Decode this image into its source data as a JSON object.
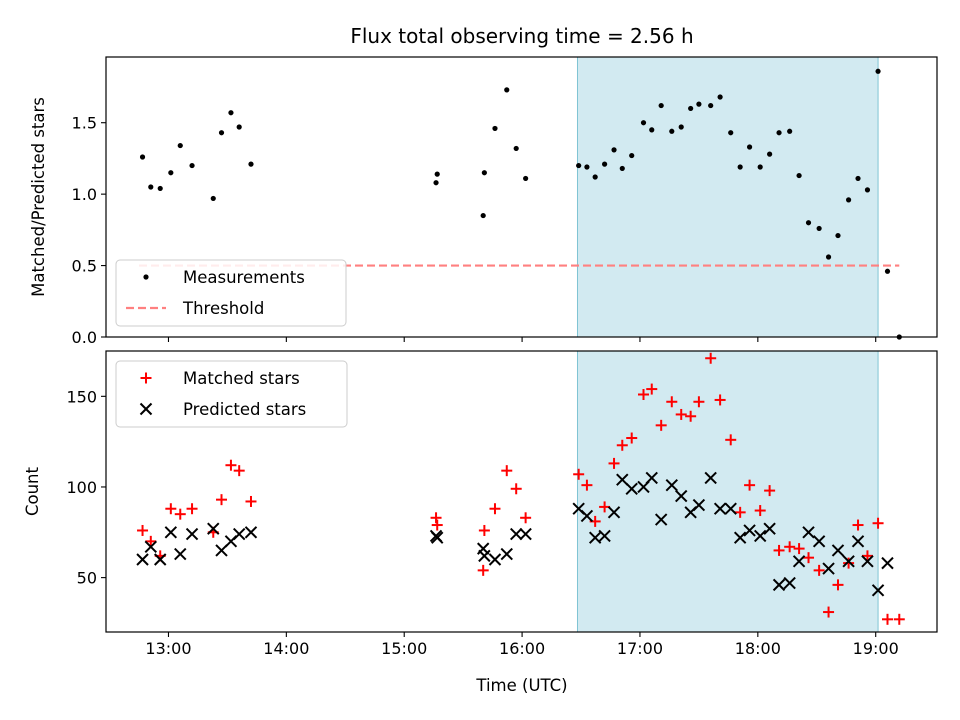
{
  "figure": {
    "title": "Flux total observing time = 2.56 h",
    "xlabel": "Time (UTC)",
    "x_ticks": [
      {
        "v": 13.0,
        "label": "13:00"
      },
      {
        "v": 14.0,
        "label": "14:00"
      },
      {
        "v": 15.0,
        "label": "15:00"
      },
      {
        "v": 16.0,
        "label": "16:00"
      },
      {
        "v": 17.0,
        "label": "17:00"
      },
      {
        "v": 18.0,
        "label": "18:00"
      },
      {
        "v": 19.0,
        "label": "19:00"
      }
    ],
    "xlim": [
      12.47,
      19.52
    ],
    "shaded_span": {
      "from": 16.47,
      "to": 19.02,
      "color": "#add8e6"
    }
  },
  "chart_data": [
    {
      "type": "scatter",
      "ylabel": "Matched/Predicted stars",
      "ylim": [
        0,
        1.96
      ],
      "y_ticks": [
        {
          "v": 0.0,
          "label": "0.0"
        },
        {
          "v": 0.5,
          "label": "0.5"
        },
        {
          "v": 1.0,
          "label": "1.0"
        },
        {
          "v": 1.5,
          "label": "1.5"
        }
      ],
      "legend": {
        "position": "lower-left",
        "entries": [
          "Measurements",
          "Threshold"
        ]
      },
      "threshold": {
        "name": "Threshold",
        "value": 0.5,
        "x_range": [
          12.75,
          19.2
        ],
        "color": "#ff8080"
      },
      "series": [
        {
          "name": "Measurements",
          "color": "#000000",
          "marker": "dot",
          "x": [
            12.78,
            12.85,
            12.93,
            13.02,
            13.1,
            13.2,
            13.38,
            13.45,
            13.53,
            13.6,
            13.7,
            15.27,
            15.28,
            15.67,
            15.68,
            15.77,
            15.87,
            15.95,
            16.03,
            16.48,
            16.55,
            16.62,
            16.7,
            16.78,
            16.85,
            16.93,
            17.03,
            17.1,
            17.18,
            17.27,
            17.35,
            17.43,
            17.5,
            17.6,
            17.68,
            17.77,
            17.85,
            17.93,
            18.02,
            18.1,
            18.18,
            18.27,
            18.35,
            18.43,
            18.52,
            18.6,
            18.68,
            18.77,
            18.85,
            18.93,
            19.02,
            19.1,
            19.2
          ],
          "y": [
            1.26,
            1.05,
            1.04,
            1.15,
            1.34,
            1.2,
            0.97,
            1.43,
            1.57,
            1.47,
            1.21,
            1.08,
            1.14,
            0.85,
            1.15,
            1.46,
            1.73,
            1.32,
            1.11,
            1.2,
            1.19,
            1.12,
            1.21,
            1.31,
            1.18,
            1.27,
            1.5,
            1.45,
            1.62,
            1.44,
            1.47,
            1.6,
            1.63,
            1.62,
            1.68,
            1.43,
            1.19,
            1.33,
            1.19,
            1.28,
            1.43,
            1.44,
            1.13,
            0.8,
            0.76,
            0.56,
            0.71,
            0.96,
            1.11,
            1.03,
            1.86,
            0.46,
            0.0
          ]
        }
      ]
    },
    {
      "type": "scatter",
      "ylabel": "Count",
      "ylim": [
        20,
        175
      ],
      "y_ticks": [
        {
          "v": 50,
          "label": "50"
        },
        {
          "v": 100,
          "label": "100"
        },
        {
          "v": 150,
          "label": "150"
        }
      ],
      "legend": {
        "position": "upper-left",
        "entries": [
          "Matched stars",
          "Predicted stars"
        ]
      },
      "series": [
        {
          "name": "Matched stars",
          "color": "#ff0000",
          "marker": "plus",
          "x": [
            12.78,
            12.85,
            12.93,
            13.02,
            13.1,
            13.2,
            13.38,
            13.45,
            13.53,
            13.6,
            13.7,
            15.27,
            15.28,
            15.67,
            15.68,
            15.77,
            15.87,
            15.95,
            16.03,
            16.48,
            16.55,
            16.62,
            16.7,
            16.78,
            16.85,
            16.93,
            17.03,
            17.1,
            17.18,
            17.27,
            17.35,
            17.43,
            17.5,
            17.6,
            17.68,
            17.77,
            17.85,
            17.93,
            18.02,
            18.1,
            18.18,
            18.27,
            18.35,
            18.43,
            18.52,
            18.6,
            18.68,
            18.77,
            18.85,
            18.93,
            19.02,
            19.1,
            19.2
          ],
          "y": [
            76,
            70,
            62,
            88,
            85,
            88,
            75,
            93,
            112,
            109,
            92,
            83,
            79,
            54,
            76,
            88,
            109,
            99,
            83,
            107,
            101,
            81,
            89,
            113,
            123,
            127,
            151,
            154,
            134,
            147,
            140,
            139,
            147,
            171,
            148,
            126,
            86,
            101,
            87,
            98,
            65,
            67,
            66,
            61,
            54,
            31,
            46,
            58,
            79,
            62,
            80,
            27,
            27
          ]
        },
        {
          "name": "Predicted stars",
          "color": "#000000",
          "marker": "x",
          "x": [
            12.78,
            12.85,
            12.93,
            13.02,
            13.1,
            13.2,
            13.38,
            13.45,
            13.53,
            13.6,
            13.7,
            15.27,
            15.28,
            15.67,
            15.68,
            15.77,
            15.87,
            15.95,
            16.03,
            16.48,
            16.55,
            16.62,
            16.7,
            16.78,
            16.85,
            16.93,
            17.03,
            17.1,
            17.18,
            17.27,
            17.35,
            17.43,
            17.5,
            17.6,
            17.68,
            17.77,
            17.85,
            17.93,
            18.02,
            18.1,
            18.18,
            18.27,
            18.35,
            18.43,
            18.52,
            18.6,
            18.68,
            18.77,
            18.85,
            18.93,
            19.02,
            19.1
          ],
          "y": [
            60,
            67,
            60,
            75,
            63,
            74,
            77,
            65,
            70,
            74,
            75,
            73,
            72,
            66,
            62,
            60,
            63,
            74,
            74,
            88,
            84,
            72,
            73,
            86,
            104,
            99,
            100,
            105,
            82,
            101,
            95,
            86,
            90,
            105,
            88,
            88,
            72,
            76,
            73,
            77,
            46,
            47,
            59,
            75,
            70,
            55,
            65,
            59,
            70,
            59,
            43,
            58
          ]
        }
      ]
    }
  ]
}
